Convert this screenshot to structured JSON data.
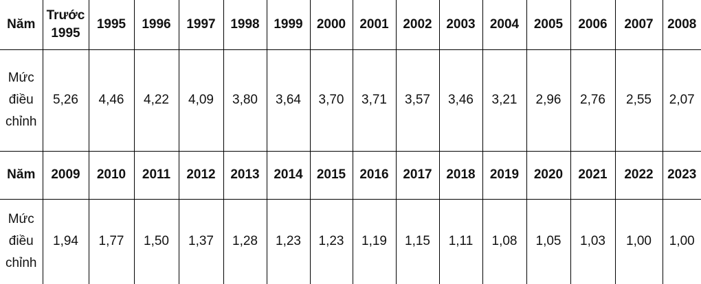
{
  "table": {
    "rows": [
      [
        "Năm",
        "Trước 1995",
        "1995",
        "1996",
        "1997",
        "1998",
        "1999",
        "2000",
        "2001",
        "2002",
        "2003",
        "2004",
        "2005",
        "2006",
        "2007",
        "2008"
      ],
      [
        "Mức điều chỉnh",
        "5,26",
        "4,46",
        "4,22",
        "4,09",
        "3,80",
        "3,64",
        "3,70",
        "3,71",
        "3,57",
        "3,46",
        "3,21",
        "2,96",
        "2,76",
        "2,55",
        "2,07"
      ],
      [
        "Năm",
        "2009",
        "2010",
        "2011",
        "2012",
        "2013",
        "2014",
        "2015",
        "2016",
        "2017",
        "2018",
        "2019",
        "2020",
        "2021",
        "2022",
        "2023"
      ],
      [
        "Mức điều chỉnh",
        "1,94",
        "1,77",
        "1,50",
        "1,37",
        "1,28",
        "1,23",
        "1,23",
        "1,19",
        "1,15",
        "1,11",
        "1,08",
        "1,05",
        "1,03",
        "1,00",
        "1,00"
      ]
    ]
  }
}
